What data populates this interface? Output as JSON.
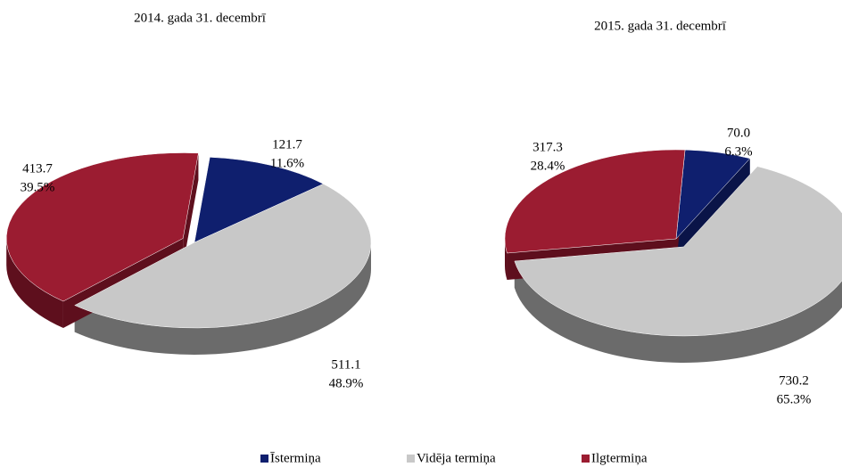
{
  "chart_data": [
    {
      "type": "pie",
      "title": "2014. gada 31. decembrī",
      "categories": [
        "Īstermiņa",
        "Vidēja termiņa",
        "Ilgtermiņa"
      ],
      "colors": [
        "#0f1f6e",
        "#c8c8c8",
        "#9b1c31"
      ],
      "values": [
        121.7,
        511.1,
        413.7
      ],
      "shares": [
        11.6,
        48.9,
        39.5
      ],
      "share_labels": [
        "11.6%",
        "48.9%",
        "39.5%"
      ],
      "legend": "bottom"
    },
    {
      "type": "pie",
      "title": "2015. gada 31. decembrī",
      "values": [
        70.0,
        730.2,
        317.3
      ],
      "value_labels": [
        "70.0",
        "730.2",
        "317.3"
      ],
      "shares": [
        6.3,
        65.3,
        28.4
      ],
      "share_labels": [
        "6.3%",
        "65.3%",
        "28.4%"
      ]
    }
  ]
}
